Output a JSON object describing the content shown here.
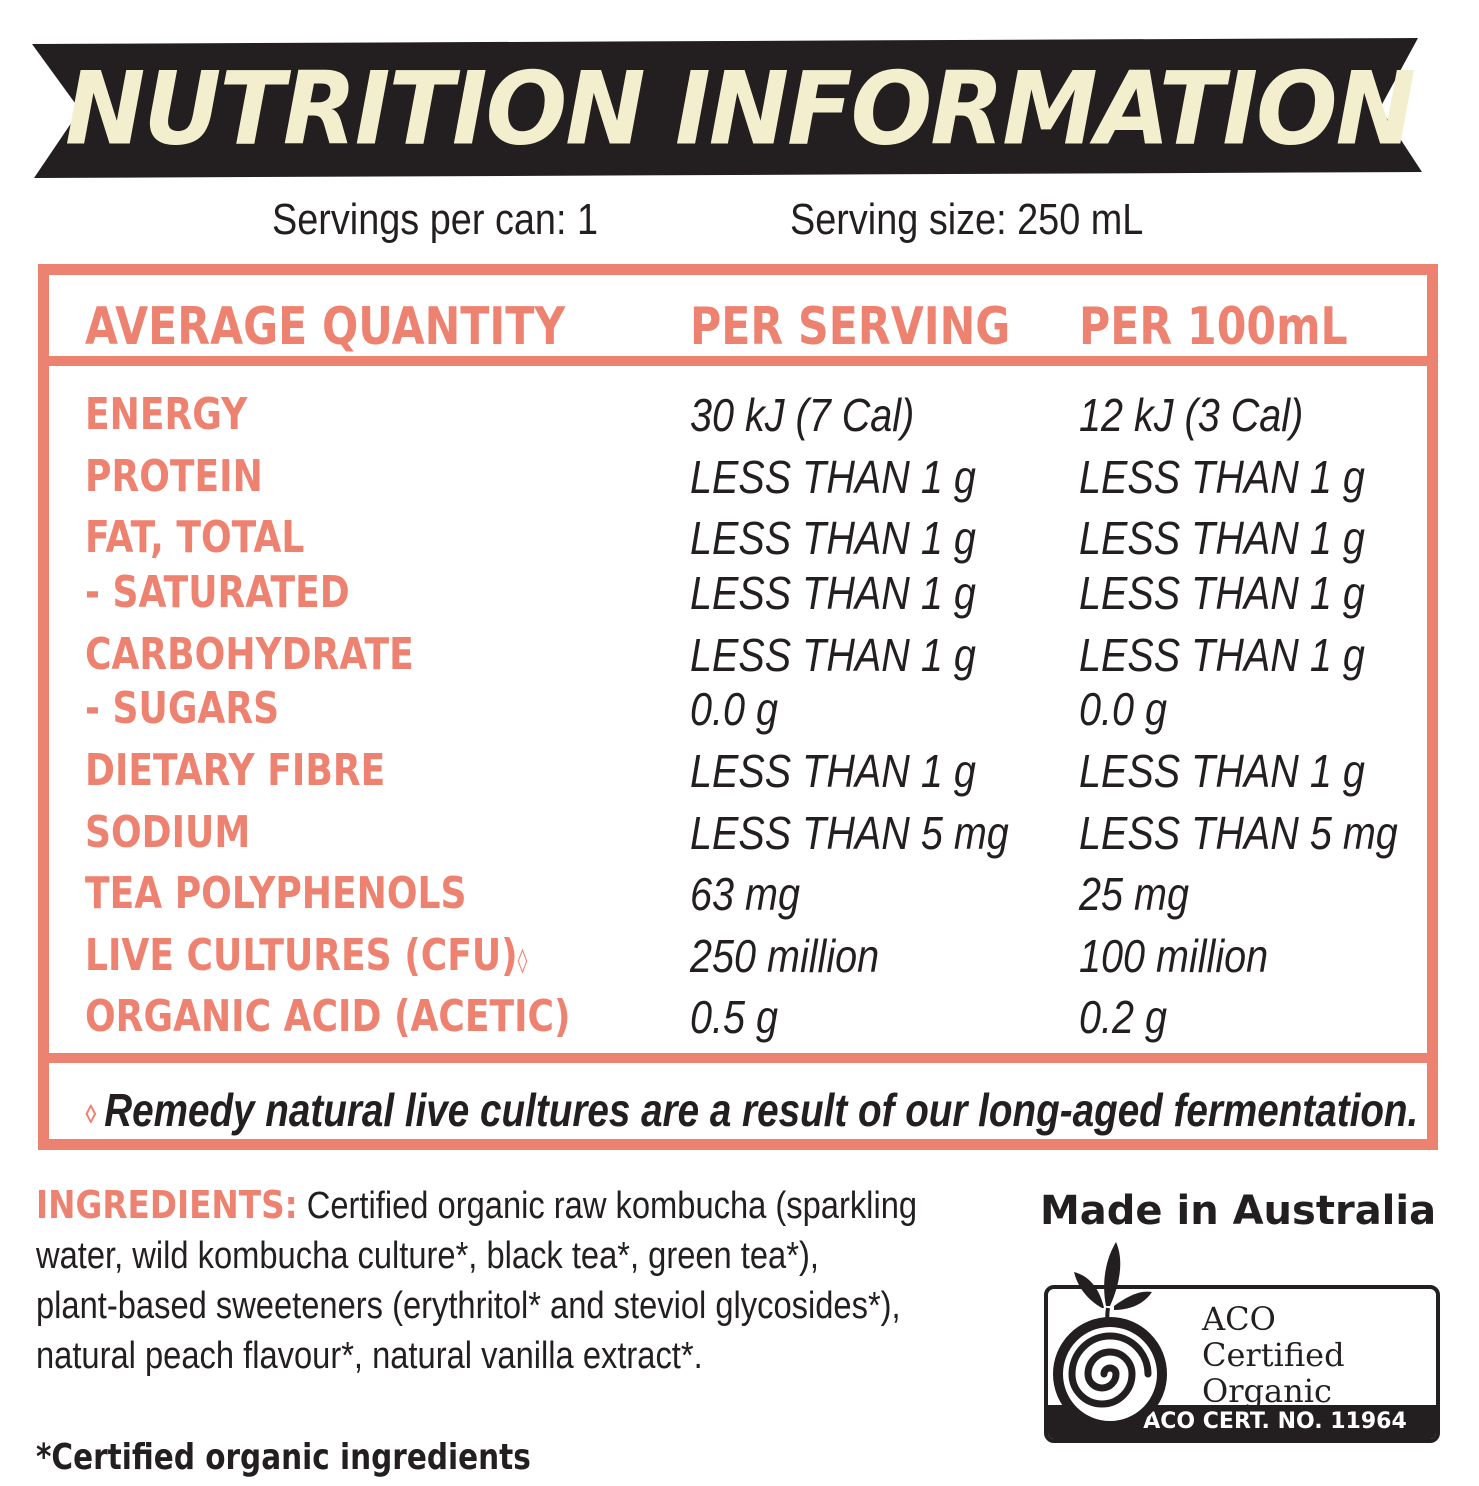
{
  "title": "NUTRITION INFORMATION",
  "servings_per_can": "Servings per can: 1",
  "serving_size": "Serving size: 250 mL",
  "table": {
    "headers": [
      "AVERAGE QUANTITY",
      "PER SERVING",
      "PER 100mL"
    ],
    "rows": [
      {
        "nutrient": "ENERGY",
        "per_serving": "30 kJ (7 Cal)",
        "per_100ml": "12 kJ (3 Cal)"
      },
      {
        "nutrient": "PROTEIN",
        "per_serving": "LESS THAN 1 g",
        "per_100ml": "LESS THAN 1 g"
      },
      {
        "nutrient": "FAT, TOTAL",
        "per_serving": "LESS THAN 1 g",
        "per_100ml": "LESS THAN 1 g"
      },
      {
        "nutrient": "- SATURATED",
        "per_serving": "LESS THAN 1 g",
        "per_100ml": "LESS THAN 1 g"
      },
      {
        "nutrient": "CARBOHYDRATE",
        "per_serving": "LESS THAN 1 g",
        "per_100ml": "LESS THAN 1 g"
      },
      {
        "nutrient": "- SUGARS",
        "per_serving": "0.0 g",
        "per_100ml": "0.0 g"
      },
      {
        "nutrient": "DIETARY FIBRE",
        "per_serving": "LESS THAN 1 g",
        "per_100ml": "LESS THAN 1 g"
      },
      {
        "nutrient": "SODIUM",
        "per_serving": "LESS THAN 5 mg",
        "per_100ml": "LESS THAN 5 mg"
      },
      {
        "nutrient": "TEA POLYPHENOLS",
        "per_serving": "63 mg",
        "per_100ml": "25 mg"
      },
      {
        "nutrient": "LIVE CULTURES (CFU)",
        "per_serving": "250 million",
        "per_100ml": "100 million"
      },
      {
        "nutrient": "ORGANIC ACID (ACETIC)",
        "per_serving": "0.5 g",
        "per_100ml": "0.2 g"
      }
    ],
    "footnote_mark": "◊",
    "footnote": "Remedy natural live cultures are a result of our long-aged fermentation."
  },
  "ingredients": {
    "label": "INGREDIENTS:",
    "lines": [
      "Certified organic raw kombucha (sparkling",
      "water, wild kombucha culture*, black tea*, green tea*),",
      "plant-based sweeteners (erythritol* and steviol glycosides*),",
      "natural peach flavour*, natural vanilla extract*."
    ],
    "certified_note": "*Certified organic ingredients"
  },
  "made_in": "Made in Australia",
  "certification": {
    "lines": [
      "ACO",
      "Certified",
      "Organic"
    ],
    "cert_no": "ACO CERT. NO. 11964"
  },
  "colors": {
    "accent": "#ee8271",
    "banner": "#231f20",
    "banner_text": "#f3efce",
    "text": "#231f20"
  }
}
